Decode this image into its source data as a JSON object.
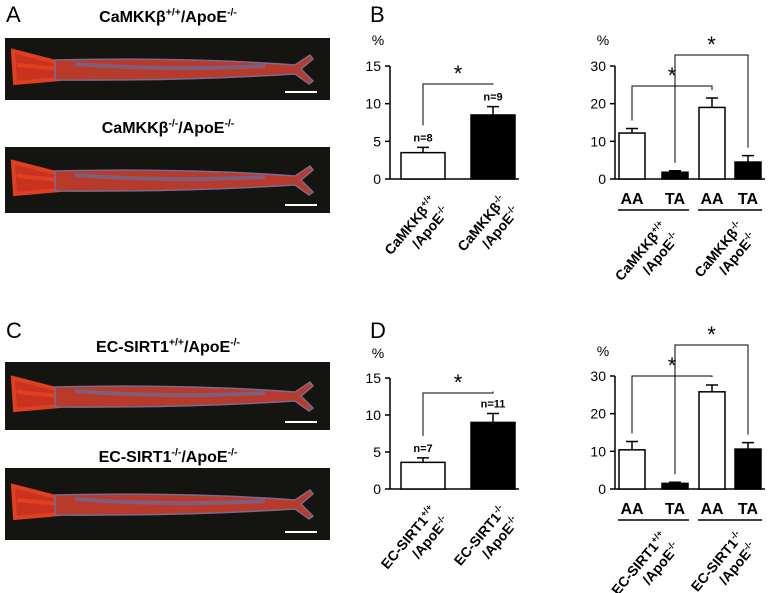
{
  "panels": [
    "A",
    "B",
    "C",
    "D"
  ],
  "photos": [
    {
      "label": [
        "CaMKKβ",
        "+/+",
        "/ApoE",
        "-/-"
      ]
    },
    {
      "label": [
        "CaMKKβ",
        "-/-",
        "/ApoE",
        "-/-"
      ]
    },
    {
      "label": [
        "EC-SIRT1",
        "+/+",
        "/ApoE",
        "-/-"
      ]
    },
    {
      "label": [
        "EC-SIRT1",
        "-/-",
        "/ApoE",
        "-/-"
      ]
    }
  ],
  "chart_data": [
    {
      "type": "bar",
      "y_label": "%",
      "categories": [
        [
          [
            "CaMKKβ",
            "+/+"
          ],
          [
            "/ApoE",
            "-/-"
          ]
        ],
        [
          [
            "CaMKKβ",
            "-/-"
          ],
          [
            "/ApoE",
            "-/-"
          ]
        ]
      ],
      "values": [
        3.5,
        8.5
      ],
      "errors": [
        0.7,
        1.1
      ],
      "colors": [
        "#ffffff",
        "#000000"
      ],
      "n_labels": [
        "n=8",
        "n=9"
      ],
      "significance": [
        {
          "from": 0,
          "to": 1,
          "label": "*"
        }
      ],
      "ylim": [
        0,
        15
      ],
      "yticks": [
        0,
        5,
        10,
        15
      ]
    },
    {
      "type": "grouped_bar",
      "y_label": "%",
      "categories": [
        "AA",
        "TA",
        "AA",
        "TA"
      ],
      "groups": [
        [
          [
            "CaMKKβ",
            "+/+"
          ],
          [
            "/ApoE",
            "-/-"
          ]
        ],
        [
          [
            "CaMKKβ",
            "-/-"
          ],
          [
            "/ApoE",
            "-/-"
          ]
        ]
      ],
      "values": [
        12.2,
        1.8,
        19,
        4.5
      ],
      "errors": [
        1.2,
        0.4,
        2.5,
        1.7
      ],
      "colors": [
        "#ffffff",
        "#000000",
        "#ffffff",
        "#000000"
      ],
      "significance": [
        {
          "from": 0,
          "to": 2,
          "label": "*"
        },
        {
          "from": 1,
          "to": 3,
          "label": "*"
        }
      ],
      "ylim": [
        0,
        30
      ],
      "yticks": [
        0,
        10,
        20,
        30
      ]
    },
    {
      "type": "bar",
      "y_label": "%",
      "categories": [
        [
          [
            "EC-SIRT1",
            "+/+"
          ],
          [
            "/ApoE",
            "-/-"
          ]
        ],
        [
          [
            "EC-SIRT1",
            "-/-"
          ],
          [
            "/ApoE",
            "-/-"
          ]
        ]
      ],
      "values": [
        3.6,
        9
      ],
      "errors": [
        0.6,
        1.2
      ],
      "colors": [
        "#ffffff",
        "#000000"
      ],
      "n_labels": [
        "n=7",
        "n=11"
      ],
      "significance": [
        {
          "from": 0,
          "to": 1,
          "label": "*"
        }
      ],
      "ylim": [
        0,
        15
      ],
      "yticks": [
        0,
        5,
        10,
        15
      ]
    },
    {
      "type": "grouped_bar",
      "y_label": "%",
      "categories": [
        "AA",
        "TA",
        "AA",
        "TA"
      ],
      "groups": [
        [
          [
            "EC-SIRT1",
            "+/+"
          ],
          [
            "/ApoE",
            "-/-"
          ]
        ],
        [
          [
            "EC-SIRT1",
            "-/-"
          ],
          [
            "/ApoE",
            "-/-"
          ]
        ]
      ],
      "values": [
        10.4,
        1.5,
        25.8,
        10.6
      ],
      "errors": [
        2.2,
        0.3,
        1.8,
        1.7
      ],
      "colors": [
        "#ffffff",
        "#000000",
        "#ffffff",
        "#000000"
      ],
      "significance": [
        {
          "from": 0,
          "to": 2,
          "label": "*"
        },
        {
          "from": 1,
          "to": 3,
          "label": "*"
        }
      ],
      "ylim": [
        0,
        30
      ],
      "yticks": [
        0,
        10,
        20,
        30
      ]
    }
  ]
}
